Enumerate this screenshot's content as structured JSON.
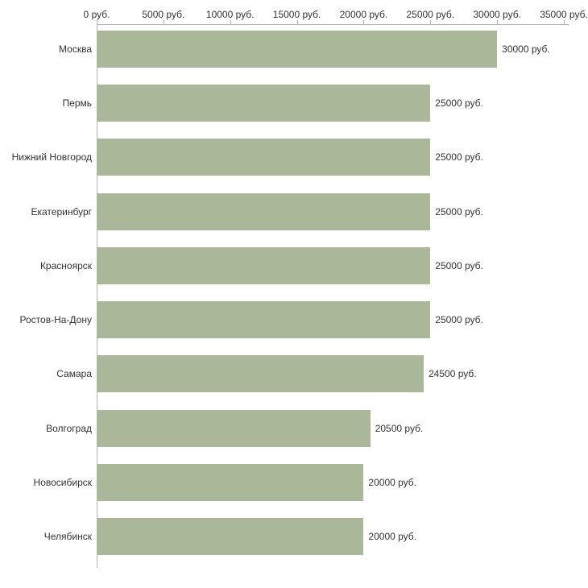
{
  "chart_data": {
    "type": "bar",
    "orientation": "horizontal",
    "title": "",
    "categories": [
      "Москва",
      "Пермь",
      "Нижний Новгород",
      "Екатеринбург",
      "Красноярск",
      "Ростов-На-Дону",
      "Самара",
      "Волгоград",
      "Новосибирск",
      "Челябинск"
    ],
    "values": [
      30000,
      25000,
      25000,
      25000,
      25000,
      25000,
      24500,
      20500,
      20000,
      20000
    ],
    "value_labels": [
      "30000 руб.",
      "25000 руб.",
      "25000 руб.",
      "25000 руб.",
      "25000 руб.",
      "25000 руб.",
      "24500 руб.",
      "20500 руб.",
      "20000 руб.",
      "20000 руб."
    ],
    "x_ticks": [
      0,
      5000,
      10000,
      15000,
      20000,
      25000,
      30000,
      35000
    ],
    "x_tick_labels": [
      "0 руб.",
      "5000 руб.",
      "10000 руб.",
      "15000 руб.",
      "20000 руб.",
      "25000 руб.",
      "30000 руб.",
      "35000 руб."
    ],
    "xlim": [
      0,
      35000
    ],
    "unit": "руб.",
    "xlabel": "",
    "ylabel": "",
    "grid": false,
    "legend": false,
    "bar_color": "#abb799",
    "axis_color": "#b3b3b3",
    "text_color": "#333333"
  }
}
